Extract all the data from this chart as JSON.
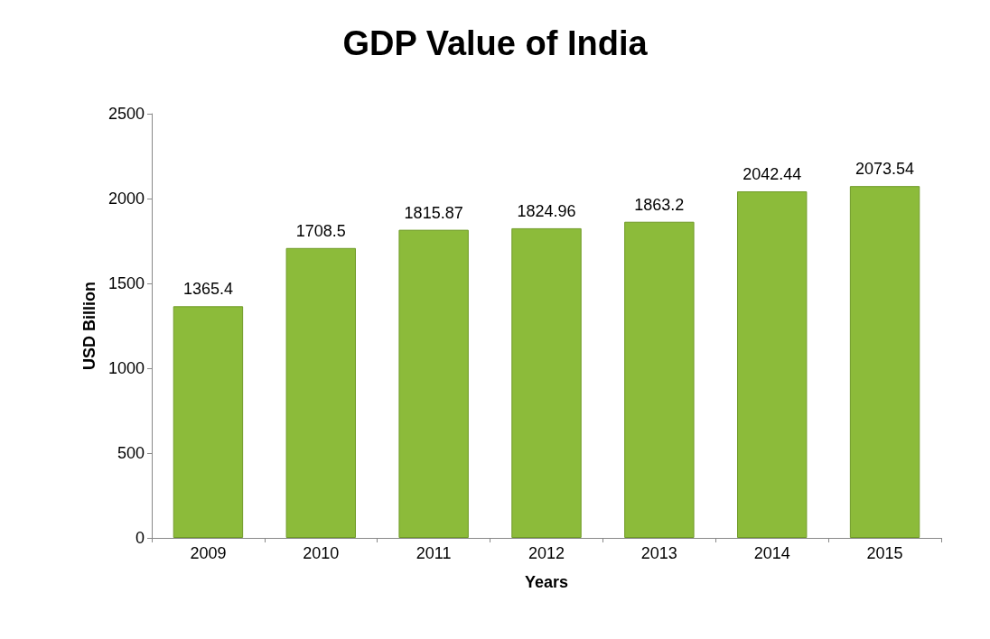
{
  "chart_data": {
    "type": "bar",
    "title": "GDP Value of India",
    "xlabel": "Years",
    "ylabel": "USD Billion",
    "categories": [
      "2009",
      "2010",
      "2011",
      "2012",
      "2013",
      "2014",
      "2015"
    ],
    "values": [
      1365.4,
      1708.5,
      1815.87,
      1824.96,
      1863.2,
      2042.44,
      2073.54
    ],
    "color": "#8cbb3a",
    "ylim": [
      0,
      2500
    ],
    "yticks": [
      0,
      500,
      1000,
      1500,
      2000,
      2500
    ],
    "grid": false,
    "data_labels": true
  }
}
